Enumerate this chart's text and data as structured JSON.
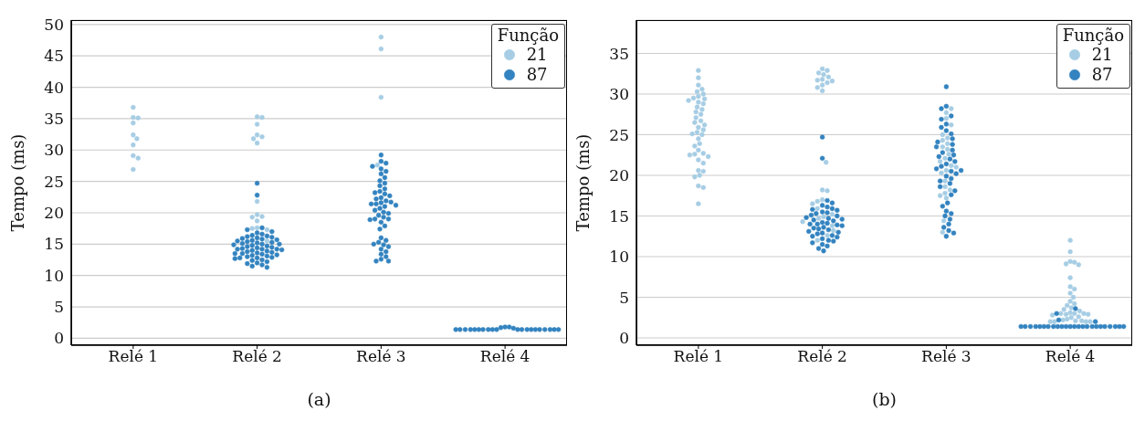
{
  "chart_data": [
    {
      "type": "scatter",
      "xlabel": "(a)",
      "ylabel": "Tempo (ms)",
      "legend_title": "Função",
      "categories": [
        "Relé 1",
        "Relé 2",
        "Relé 3",
        "Relé 4"
      ],
      "ylim": [
        -1.1,
        50.7
      ],
      "yticks": [
        0,
        5,
        10,
        15,
        20,
        25,
        30,
        35,
        40,
        45,
        50
      ],
      "grid": "y",
      "legend": "top right",
      "marker": "circle",
      "series": [
        {
          "name": "21",
          "color": "#a6cde4",
          "x": [
            "Relé 1",
            "Relé 1",
            "Relé 1",
            "Relé 1",
            "Relé 1",
            "Relé 1",
            "Relé 1",
            "Relé 1",
            "Relé 1",
            "Relé 1",
            "Relé 2",
            "Relé 2",
            "Relé 2",
            "Relé 2",
            "Relé 2",
            "Relé 2",
            "Relé 2",
            "Relé 2",
            "Relé 2",
            "Relé 2",
            "Relé 2",
            "Relé 2",
            "Relé 2",
            "Relé 2",
            "Relé 2",
            "Relé 2",
            "Relé 3",
            "Relé 3",
            "Relé 3",
            "Relé 3"
          ],
          "values": [
            36.8,
            35.2,
            35.1,
            34.3,
            32.4,
            31.8,
            30.8,
            29.1,
            28.7,
            26.9,
            35.3,
            35.2,
            34.1,
            32.4,
            32.1,
            31.8,
            31.1,
            21.8,
            19.7,
            19.4,
            19.3,
            18.7,
            17.6,
            17.5,
            17.3,
            15.5,
            48.0,
            46.1,
            38.4,
            27.6
          ]
        },
        {
          "name": "87",
          "color": "#3383c0",
          "x": [
            "Relé 2",
            "Relé 2",
            "Relé 2",
            "Relé 2",
            "Relé 2",
            "Relé 2",
            "Relé 2",
            "Relé 2",
            "Relé 2",
            "Relé 2",
            "Relé 2",
            "Relé 2",
            "Relé 2",
            "Relé 2",
            "Relé 2",
            "Relé 2",
            "Relé 2",
            "Relé 2",
            "Relé 2",
            "Relé 2",
            "Relé 2",
            "Relé 2",
            "Relé 2",
            "Relé 2",
            "Relé 2",
            "Relé 2",
            "Relé 2",
            "Relé 2",
            "Relé 2",
            "Relé 2",
            "Relé 2",
            "Relé 2",
            "Relé 2",
            "Relé 2",
            "Relé 2",
            "Relé 2",
            "Relé 2",
            "Relé 2",
            "Relé 2",
            "Relé 2",
            "Relé 2",
            "Relé 2",
            "Relé 2",
            "Relé 2",
            "Relé 2",
            "Relé 2",
            "Relé 2",
            "Relé 2",
            "Relé 2",
            "Relé 2",
            "Relé 2",
            "Relé 2",
            "Relé 2",
            "Relé 2",
            "Relé 2",
            "Relé 2",
            "Relé 2",
            "Relé 2",
            "Relé 3",
            "Relé 3",
            "Relé 3",
            "Relé 3",
            "Relé 3",
            "Relé 3",
            "Relé 3",
            "Relé 3",
            "Relé 3",
            "Relé 3",
            "Relé 3",
            "Relé 3",
            "Relé 3",
            "Relé 3",
            "Relé 3",
            "Relé 3",
            "Relé 3",
            "Relé 3",
            "Relé 3",
            "Relé 3",
            "Relé 3",
            "Relé 3",
            "Relé 3",
            "Relé 3",
            "Relé 3",
            "Relé 3",
            "Relé 3",
            "Relé 3",
            "Relé 3",
            "Relé 3",
            "Relé 3",
            "Relé 3",
            "Relé 3",
            "Relé 3",
            "Relé 3",
            "Relé 3",
            "Relé 3",
            "Relé 3",
            "Relé 3",
            "Relé 3",
            "Relé 3",
            "Relé 3",
            "Relé 3",
            "Relé 3",
            "Relé 3",
            "Relé 3",
            "Relé 3",
            "Relé 3",
            "Relé 3",
            "Relé 3",
            "Relé 4",
            "Relé 4",
            "Relé 4",
            "Relé 4",
            "Relé 4",
            "Relé 4",
            "Relé 4",
            "Relé 4",
            "Relé 4",
            "Relé 4",
            "Relé 4",
            "Relé 4",
            "Relé 4",
            "Relé 4",
            "Relé 4",
            "Relé 4",
            "Relé 4",
            "Relé 4",
            "Relé 4",
            "Relé 4",
            "Relé 4",
            "Relé 4",
            "Relé 4",
            "Relé 4"
          ],
          "values": [
            11.3,
            11.5,
            11.7,
            11.9,
            12.0,
            12.2,
            12.4,
            12.5,
            12.7,
            12.8,
            12.8,
            12.9,
            13.0,
            13.1,
            13.2,
            13.3,
            13.4,
            13.5,
            13.5,
            13.6,
            13.7,
            13.8,
            13.9,
            14.0,
            14.1,
            14.2,
            14.2,
            14.2,
            14.3,
            14.4,
            14.5,
            14.6,
            14.7,
            14.8,
            14.9,
            15.0,
            15.0,
            15.1,
            15.2,
            15.3,
            15.4,
            15.5,
            15.6,
            15.7,
            15.8,
            15.9,
            16.0,
            16.1,
            16.2,
            16.3,
            16.4,
            16.6,
            16.8,
            17.0,
            17.3,
            17.6,
            22.8,
            24.7,
            12.3,
            12.3,
            12.6,
            13.0,
            13.4,
            13.8,
            14.2,
            14.6,
            14.9,
            15.0,
            15.3,
            15.6,
            16.0,
            17.4,
            17.9,
            18.5,
            18.9,
            19.0,
            19.0,
            19.3,
            19.6,
            19.9,
            20.1,
            20.4,
            20.7,
            21.0,
            21.2,
            21.4,
            21.4,
            21.6,
            21.7,
            21.9,
            22.2,
            22.4,
            22.7,
            23.0,
            23.2,
            23.4,
            23.8,
            24.3,
            24.7,
            25.1,
            25.6,
            26.2,
            26.6,
            27.0,
            27.4,
            27.9,
            28.2,
            29.2,
            1.4,
            1.4,
            1.4,
            1.4,
            1.4,
            1.4,
            1.4,
            1.4,
            1.4,
            1.4,
            1.4,
            1.4,
            1.4,
            1.4,
            1.4,
            1.4,
            1.4,
            1.4,
            1.4,
            1.4,
            1.8,
            1.8,
            1.6,
            1.7
          ]
        }
      ]
    },
    {
      "type": "scatter",
      "xlabel": "(b)",
      "ylabel": "Tempo (ms)",
      "legend_title": "Função",
      "categories": [
        "Relé 1",
        "Relé 2",
        "Relé 3",
        "Relé 4"
      ],
      "ylim": [
        -0.9,
        39.1
      ],
      "yticks": [
        0,
        5,
        10,
        15,
        20,
        25,
        30,
        35
      ],
      "grid": "y",
      "legend": "top right",
      "marker": "circle",
      "series": [
        {
          "name": "21",
          "color": "#a6cde4",
          "x": [
            "Relé 1",
            "Relé 1",
            "Relé 1",
            "Relé 1",
            "Relé 1",
            "Relé 1",
            "Relé 1",
            "Relé 1",
            "Relé 1",
            "Relé 1",
            "Relé 1",
            "Relé 1",
            "Relé 1",
            "Relé 1",
            "Relé 1",
            "Relé 1",
            "Relé 1",
            "Relé 1",
            "Relé 1",
            "Relé 1",
            "Relé 1",
            "Relé 1",
            "Relé 1",
            "Relé 1",
            "Relé 1",
            "Relé 1",
            "Relé 1",
            "Relé 1",
            "Relé 1",
            "Relé 1",
            "Relé 1",
            "Relé 1",
            "Relé 1",
            "Relé 1",
            "Relé 1",
            "Relé 1",
            "Relé 1",
            "Relé 1",
            "Relé 1",
            "Relé 1",
            "Relé 1",
            "Relé 1",
            "Relé 2",
            "Relé 2",
            "Relé 2",
            "Relé 2",
            "Relé 2",
            "Relé 2",
            "Relé 2",
            "Relé 2",
            "Relé 2",
            "Relé 2",
            "Relé 2",
            "Relé 2",
            "Relé 2",
            "Relé 2",
            "Relé 2",
            "Relé 2",
            "Relé 2",
            "Relé 2",
            "Relé 2",
            "Relé 2",
            "Relé 2",
            "Relé 2",
            "Relé 2",
            "Relé 2",
            "Relé 2",
            "Relé 2",
            "Relé 2",
            "Relé 3",
            "Relé 3",
            "Relé 3",
            "Relé 3",
            "Relé 3",
            "Relé 3",
            "Relé 3",
            "Relé 3",
            "Relé 3",
            "Relé 3",
            "Relé 3",
            "Relé 3",
            "Relé 3",
            "Relé 3",
            "Relé 3",
            "Relé 3",
            "Relé 3",
            "Relé 3",
            "Relé 3",
            "Relé 3",
            "Relé 3",
            "Relé 3",
            "Relé 3",
            "Relé 3",
            "Relé 3",
            "Relé 4",
            "Relé 4",
            "Relé 4",
            "Relé 4",
            "Relé 4",
            "Relé 4",
            "Relé 4",
            "Relé 4",
            "Relé 4",
            "Relé 4",
            "Relé 4",
            "Relé 4",
            "Relé 4",
            "Relé 4",
            "Relé 4",
            "Relé 4",
            "Relé 4",
            "Relé 4",
            "Relé 4",
            "Relé 4",
            "Relé 4",
            "Relé 4",
            "Relé 4",
            "Relé 4",
            "Relé 4",
            "Relé 4",
            "Relé 4",
            "Relé 4",
            "Relé 4",
            "Relé 4",
            "Relé 4",
            "Relé 4",
            "Relé 4",
            "Relé 4"
          ],
          "values": [
            16.5,
            18.5,
            18.7,
            19.8,
            20.0,
            20.5,
            20.6,
            21.5,
            21.9,
            22.3,
            22.5,
            22.6,
            22.7,
            23.1,
            23.6,
            23.9,
            24.5,
            25.0,
            25.1,
            25.3,
            25.6,
            25.9,
            26.2,
            26.5,
            26.7,
            27.1,
            27.5,
            27.8,
            28.1,
            28.4,
            28.8,
            29.0,
            29.2,
            29.4,
            29.5,
            29.7,
            30.0,
            30.3,
            30.6,
            31.1,
            32.0,
            32.9,
            30.4,
            30.8,
            31.1,
            31.4,
            31.6,
            31.7,
            31.8,
            32.1,
            32.4,
            32.6,
            32.9,
            33.1,
            21.6,
            18.1,
            18.2,
            17.0,
            16.8,
            16.5,
            15.9,
            15.2,
            14.9,
            14.7,
            14.3,
            13.8,
            13.2,
            12.6,
            12.0,
            17.2,
            17.5,
            17.8,
            18.2,
            18.6,
            19.3,
            20.3,
            20.6,
            21.0,
            21.2,
            21.7,
            22.1,
            22.6,
            23.2,
            23.5,
            23.9,
            24.3,
            24.6,
            25.0,
            26.2,
            27.0,
            27.7,
            28.2,
            14.4,
            13.0,
            2.0,
            2.0,
            2.0,
            2.1,
            2.0,
            2.1,
            2.2,
            2.3,
            2.5,
            2.6,
            2.8,
            2.9,
            2.9,
            3.0,
            3.0,
            3.0,
            3.1,
            3.3,
            3.5,
            3.7,
            4.0,
            4.2,
            4.5,
            5.0,
            5.5,
            6.0,
            6.3,
            7.4,
            9.0,
            9.1,
            9.3,
            9.4,
            10.6,
            12.0
          ]
        },
        {
          "name": "87",
          "color": "#3383c0",
          "x": [
            "Relé 2",
            "Relé 2",
            "Relé 2",
            "Relé 2",
            "Relé 2",
            "Relé 2",
            "Relé 2",
            "Relé 2",
            "Relé 2",
            "Relé 2",
            "Relé 2",
            "Relé 2",
            "Relé 2",
            "Relé 2",
            "Relé 2",
            "Relé 2",
            "Relé 2",
            "Relé 2",
            "Relé 2",
            "Relé 2",
            "Relé 2",
            "Relé 2",
            "Relé 2",
            "Relé 2",
            "Relé 2",
            "Relé 2",
            "Relé 2",
            "Relé 2",
            "Relé 2",
            "Relé 2",
            "Relé 2",
            "Relé 2",
            "Relé 2",
            "Relé 2",
            "Relé 2",
            "Relé 2",
            "Relé 2",
            "Relé 2",
            "Relé 2",
            "Relé 2",
            "Relé 2",
            "Relé 2",
            "Relé 2",
            "Relé 2",
            "Relé 3",
            "Relé 3",
            "Relé 3",
            "Relé 3",
            "Relé 3",
            "Relé 3",
            "Relé 3",
            "Relé 3",
            "Relé 3",
            "Relé 3",
            "Relé 3",
            "Relé 3",
            "Relé 3",
            "Relé 3",
            "Relé 3",
            "Relé 3",
            "Relé 3",
            "Relé 3",
            "Relé 3",
            "Relé 3",
            "Relé 3",
            "Relé 3",
            "Relé 3",
            "Relé 3",
            "Relé 3",
            "Relé 3",
            "Relé 3",
            "Relé 3",
            "Relé 3",
            "Relé 3",
            "Relé 3",
            "Relé 3",
            "Relé 3",
            "Relé 3",
            "Relé 3",
            "Relé 3",
            "Relé 3",
            "Relé 3",
            "Relé 3",
            "Relé 3",
            "Relé 3",
            "Relé 3",
            "Relé 3",
            "Relé 4",
            "Relé 4",
            "Relé 4",
            "Relé 4",
            "Relé 4",
            "Relé 4",
            "Relé 4",
            "Relé 4",
            "Relé 4",
            "Relé 4",
            "Relé 4",
            "Relé 4",
            "Relé 4",
            "Relé 4",
            "Relé 4",
            "Relé 4",
            "Relé 4",
            "Relé 4",
            "Relé 4",
            "Relé 4",
            "Relé 4",
            "Relé 4",
            "Relé 4",
            "Relé 4",
            "Relé 4",
            "Relé 4",
            "Relé 4",
            "Relé 4"
          ],
          "values": [
            10.7,
            11.0,
            11.3,
            11.5,
            11.7,
            11.9,
            12.0,
            12.2,
            12.4,
            12.5,
            12.6,
            12.8,
            12.9,
            13.0,
            13.1,
            13.3,
            13.4,
            13.5,
            13.6,
            13.8,
            13.9,
            14.0,
            14.0,
            14.1,
            14.2,
            14.4,
            14.5,
            14.6,
            14.7,
            14.8,
            15.0,
            15.1,
            15.3,
            15.4,
            15.5,
            15.7,
            15.8,
            15.9,
            16.1,
            16.3,
            16.6,
            16.9,
            22.1,
            24.7,
            12.5,
            12.9,
            13.2,
            13.6,
            14.0,
            14.6,
            15.0,
            15.3,
            15.6,
            16.2,
            16.6,
            17.6,
            18.1,
            18.6,
            19.0,
            19.3,
            19.6,
            19.9,
            20.2,
            20.5,
            20.6,
            20.8,
            21.1,
            21.4,
            21.7,
            22.0,
            22.3,
            22.5,
            22.8,
            23.1,
            23.5,
            23.8,
            24.1,
            24.5,
            25.1,
            25.5,
            25.9,
            26.3,
            26.9,
            27.3,
            28.2,
            28.5,
            30.9,
            1.4,
            1.4,
            1.4,
            1.4,
            1.4,
            1.4,
            1.4,
            1.4,
            1.4,
            1.4,
            1.4,
            1.4,
            1.4,
            1.4,
            1.4,
            1.4,
            1.4,
            1.4,
            1.4,
            1.4,
            1.4,
            1.4,
            1.4,
            2.2,
            3.0,
            3.6,
            2.0,
            1.4
          ]
        }
      ]
    }
  ]
}
